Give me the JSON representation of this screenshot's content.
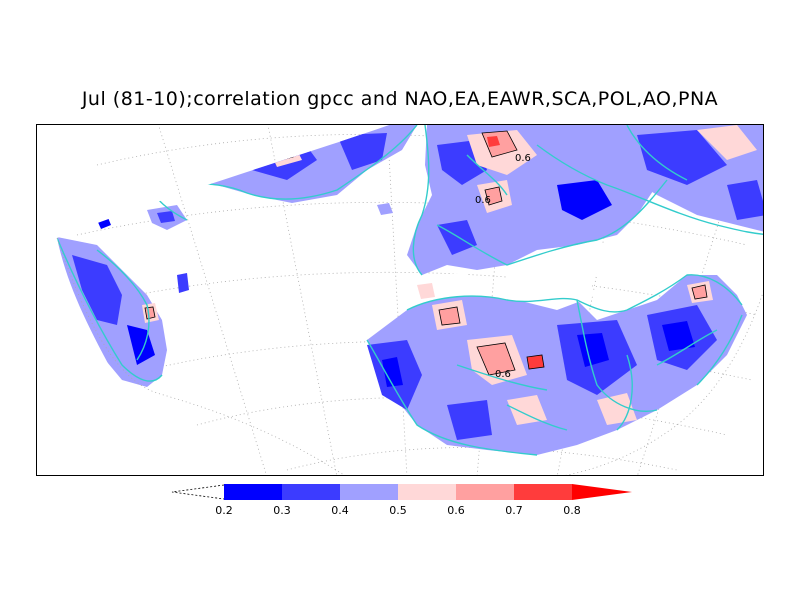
{
  "title": "Jul (81-10);correlation gpcc and NAO,EA,EAWR,SCA,POL,AO,PNA",
  "map": {
    "contour_labels": [
      "0.6",
      "0.6",
      "0.6"
    ],
    "colors": {
      "land_outline": "#33cccc",
      "graticule": "#aaaaaa",
      "contour": "#000000"
    }
  },
  "legend": {
    "levels": [
      "0.2",
      "0.3",
      "0.4",
      "0.5",
      "0.6",
      "0.7",
      "0.8"
    ],
    "colors": [
      "#0000ff",
      "#3c3cff",
      "#a0a0ff",
      "#ffd8d8",
      "#ffa0a0",
      "#ff3c3c",
      "#ff0000"
    ]
  }
}
